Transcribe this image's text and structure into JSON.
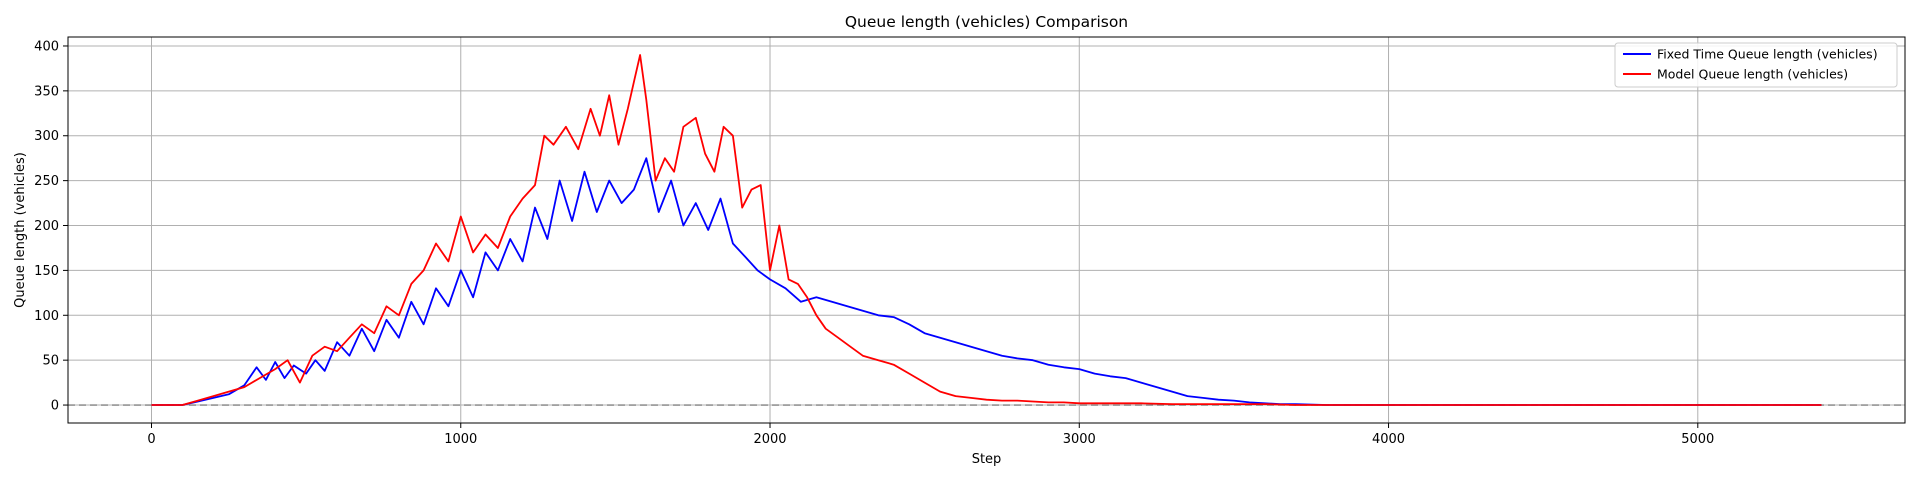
{
  "chart_data": {
    "type": "line",
    "title": "Queue length (vehicles) Comparison",
    "xlabel": "Step",
    "ylabel": "Queue length (vehicles)",
    "xlim": [
      -270,
      5670
    ],
    "ylim": [
      -20,
      410
    ],
    "xticks": [
      0,
      1000,
      2000,
      3000,
      4000,
      5000
    ],
    "yticks": [
      0,
      50,
      100,
      150,
      200,
      250,
      300,
      350,
      400
    ],
    "grid": true,
    "legend_position": "top-right",
    "reference_line": {
      "y": 0,
      "style": "dashed",
      "color": "#808080"
    },
    "series": [
      {
        "name": "Fixed Time Queue length (vehicles)",
        "color": "#0000ff",
        "x": [
          0,
          100,
          150,
          200,
          250,
          300,
          340,
          370,
          400,
          430,
          460,
          500,
          530,
          560,
          600,
          640,
          680,
          720,
          760,
          800,
          840,
          880,
          920,
          960,
          1000,
          1040,
          1080,
          1120,
          1160,
          1200,
          1240,
          1280,
          1320,
          1360,
          1400,
          1440,
          1480,
          1520,
          1560,
          1600,
          1640,
          1680,
          1720,
          1760,
          1800,
          1840,
          1880,
          1920,
          1960,
          2000,
          2050,
          2100,
          2150,
          2200,
          2250,
          2300,
          2350,
          2400,
          2450,
          2500,
          2550,
          2600,
          2650,
          2700,
          2750,
          2800,
          2850,
          2900,
          2950,
          3000,
          3050,
          3100,
          3150,
          3200,
          3250,
          3300,
          3350,
          3400,
          3450,
          3500,
          3550,
          3600,
          3650,
          3700,
          3800,
          4000,
          4500,
          5000,
          5400
        ],
        "y": [
          0,
          0,
          4,
          8,
          12,
          22,
          42,
          28,
          48,
          30,
          44,
          35,
          50,
          38,
          70,
          55,
          85,
          60,
          95,
          75,
          115,
          90,
          130,
          110,
          150,
          120,
          170,
          150,
          185,
          160,
          220,
          185,
          250,
          205,
          260,
          215,
          250,
          225,
          240,
          275,
          215,
          250,
          200,
          225,
          195,
          230,
          180,
          165,
          150,
          140,
          130,
          115,
          120,
          115,
          110,
          105,
          100,
          98,
          90,
          80,
          75,
          70,
          65,
          60,
          55,
          52,
          50,
          45,
          42,
          40,
          35,
          32,
          30,
          25,
          20,
          15,
          10,
          8,
          6,
          5,
          3,
          2,
          1,
          1,
          0,
          0,
          0,
          0,
          0
        ]
      },
      {
        "name": "Model Queue length (vehicles)",
        "color": "#ff0000",
        "x": [
          0,
          100,
          150,
          200,
          250,
          300,
          350,
          400,
          440,
          480,
          520,
          560,
          600,
          640,
          680,
          720,
          760,
          800,
          840,
          880,
          920,
          960,
          1000,
          1040,
          1080,
          1120,
          1160,
          1200,
          1240,
          1270,
          1300,
          1340,
          1380,
          1420,
          1450,
          1480,
          1510,
          1540,
          1560,
          1580,
          1600,
          1630,
          1660,
          1690,
          1720,
          1760,
          1790,
          1820,
          1850,
          1880,
          1910,
          1940,
          1970,
          2000,
          2030,
          2060,
          2090,
          2120,
          2150,
          2180,
          2220,
          2260,
          2300,
          2350,
          2400,
          2450,
          2500,
          2550,
          2600,
          2650,
          2700,
          2750,
          2800,
          2850,
          2900,
          2950,
          3000,
          3100,
          3200,
          3300,
          3400,
          3500,
          3600,
          3700,
          4000,
          5000,
          5400
        ],
        "y": [
          0,
          0,
          5,
          10,
          15,
          20,
          30,
          40,
          50,
          25,
          55,
          65,
          60,
          75,
          90,
          80,
          110,
          100,
          135,
          150,
          180,
          160,
          210,
          170,
          190,
          175,
          210,
          230,
          245,
          300,
          290,
          310,
          285,
          330,
          300,
          345,
          290,
          330,
          360,
          390,
          340,
          250,
          275,
          260,
          310,
          320,
          280,
          260,
          310,
          300,
          220,
          240,
          245,
          150,
          200,
          140,
          135,
          120,
          100,
          85,
          75,
          65,
          55,
          50,
          45,
          35,
          25,
          15,
          10,
          8,
          6,
          5,
          5,
          4,
          3,
          3,
          2,
          2,
          2,
          1,
          1,
          1,
          1,
          0,
          0,
          0,
          0
        ]
      }
    ]
  }
}
